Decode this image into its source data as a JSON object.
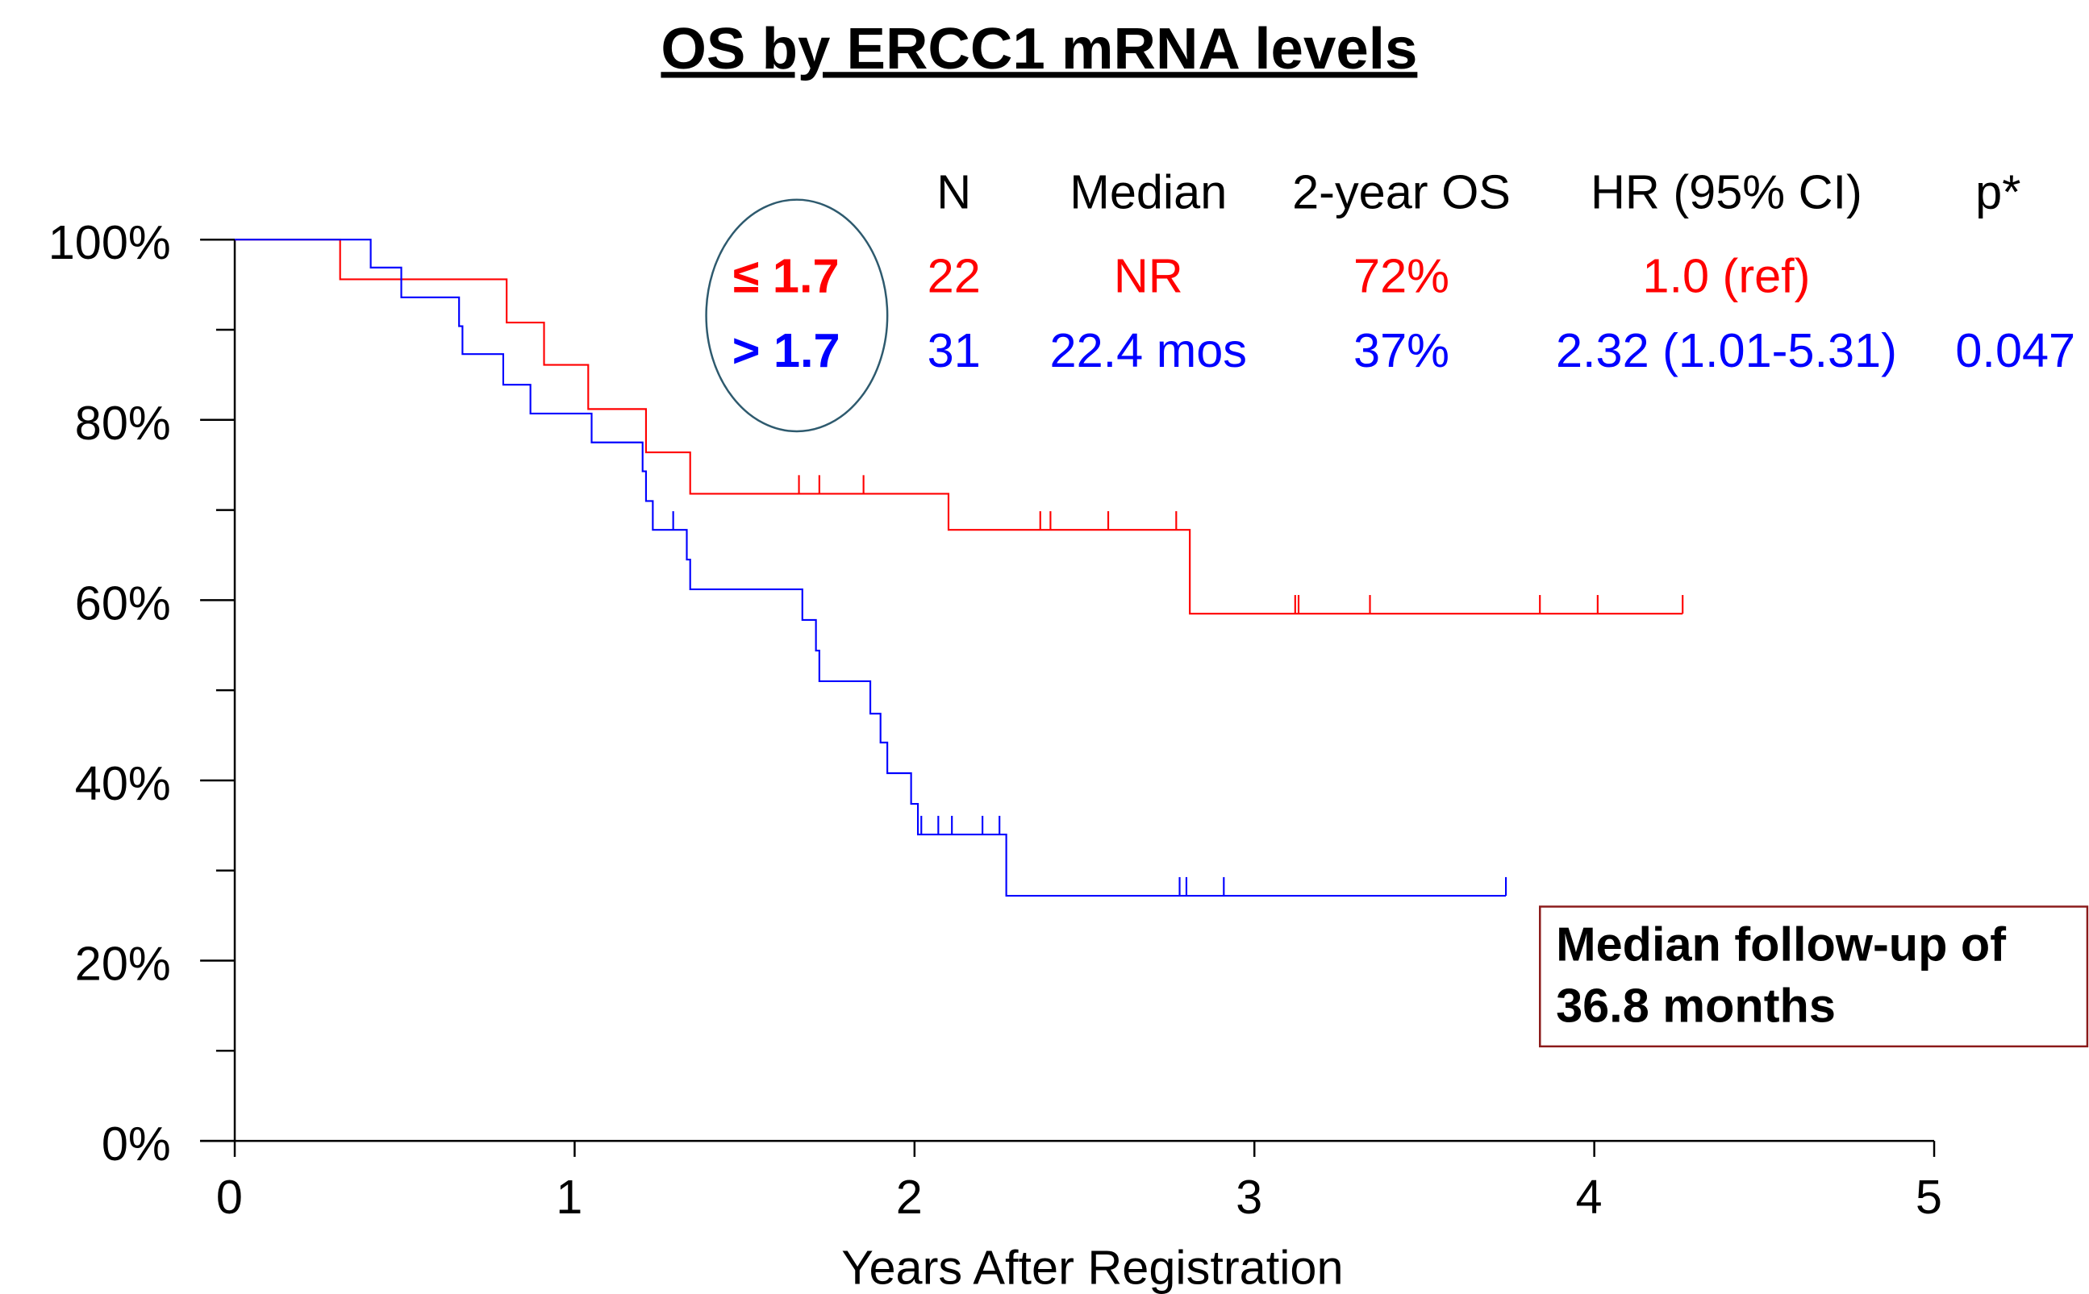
{
  "chart_data": {
    "type": "step",
    "title": "OS by ERCC1 mRNA levels",
    "x_label": "Years After Registration",
    "xlim": [
      0,
      5
    ],
    "xticks": [
      0,
      1,
      2,
      3,
      4,
      5
    ],
    "ylim": [
      0,
      100
    ],
    "yticks": [
      {
        "value": 0,
        "label": "0%"
      },
      {
        "value": 20,
        "label": "20%"
      },
      {
        "value": 40,
        "label": "40%"
      },
      {
        "value": 60,
        "label": "60%"
      },
      {
        "value": 80,
        "label": "80%"
      },
      {
        "value": 100,
        "label": "100%"
      }
    ],
    "yminor_ticks": [
      10,
      30,
      50,
      70,
      90
    ],
    "series": [
      {
        "name": "≤ 1.7",
        "color": "#ff0000",
        "x": [
          0,
          0.31,
          0.8,
          0.91,
          1.04,
          1.21,
          1.34,
          2.1,
          2.81,
          4.26
        ],
        "values": [
          100,
          95.6,
          90.8,
          86.1,
          81.2,
          76.4,
          71.8,
          67.8,
          58.5,
          58.5
        ],
        "censor_x": [
          1.66,
          1.72,
          1.85,
          2.37,
          2.4,
          2.57,
          2.77,
          3.12,
          3.13,
          3.34,
          3.84,
          4.01,
          4.26
        ],
        "censor_values": [
          71.8,
          71.8,
          71.8,
          67.8,
          67.8,
          67.8,
          67.8,
          58.5,
          58.5,
          58.5,
          58.5,
          58.5,
          58.5
        ]
      },
      {
        "name": "> 1.7",
        "color": "#0000ff",
        "x": [
          0,
          0.4,
          0.49,
          0.66,
          0.67,
          0.79,
          0.87,
          1.05,
          1.2,
          1.21,
          1.23,
          1.33,
          1.34,
          1.67,
          1.71,
          1.72,
          1.87,
          1.9,
          1.92,
          1.99,
          2.01,
          2.27,
          3.74
        ],
        "values": [
          100,
          96.9,
          93.6,
          90.4,
          87.3,
          83.9,
          80.7,
          77.5,
          74.3,
          71.0,
          67.8,
          64.5,
          61.2,
          57.8,
          54.4,
          51.0,
          47.4,
          44.2,
          40.8,
          37.4,
          34.0,
          27.2,
          27.2
        ],
        "censor_x": [
          1.29,
          2.02,
          2.07,
          2.11,
          2.2,
          2.25,
          2.78,
          2.8,
          2.91,
          3.74
        ],
        "censor_values": [
          67.8,
          34.0,
          34.0,
          34.0,
          34.0,
          34.0,
          27.2,
          27.2,
          27.2,
          27.2
        ]
      }
    ],
    "table": {
      "headers": [
        "N",
        "Median",
        "2-year OS",
        "HR (95% CI)",
        "p*"
      ],
      "rows": [
        [
          "22",
          "NR",
          "72%",
          "1.0 (ref)"
        ],
        [
          "31",
          "22.4 mos",
          "37%",
          "2.32 (1.01-5.31)",
          "0.047"
        ]
      ]
    },
    "annotation": [
      "Median follow-up of",
      "36.8 months"
    ]
  }
}
